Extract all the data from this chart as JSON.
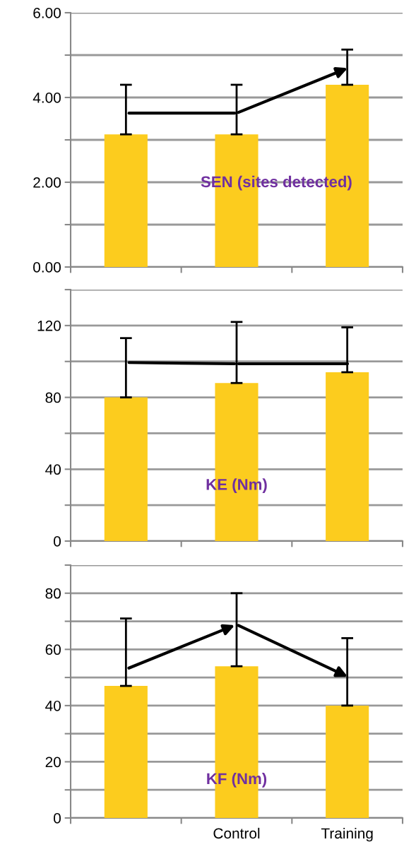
{
  "chart_data": [
    {
      "type": "bar",
      "categories": [
        null,
        null,
        null
      ],
      "values": [
        3.13,
        3.13,
        4.3
      ],
      "color": "#fccc1e",
      "errors": [
        [
          3.13,
          4.3
        ],
        [
          3.13,
          4.3
        ],
        [
          4.3,
          5.13
        ]
      ],
      "ylim": [
        0,
        6
      ],
      "yticks": [
        {
          "value": 0,
          "label": "0.00"
        },
        {
          "value": 1,
          "label": null
        },
        {
          "value": 2,
          "label": "2.00"
        },
        {
          "value": 3,
          "label": null
        },
        {
          "value": 4,
          "label": "4.00"
        },
        {
          "value": 5,
          "label": null
        },
        {
          "value": 6,
          "label": "6.00"
        }
      ],
      "grid": "y",
      "tick_labels": "y",
      "annotations": [
        "SEN (sites detected)"
      ]
    },
    {
      "type": "bar",
      "categories": [
        null,
        null,
        null
      ],
      "values": [
        80,
        88,
        94
      ],
      "color": "#fccc1e",
      "errors": [
        [
          80,
          113
        ],
        [
          88,
          122
        ],
        [
          94,
          119
        ]
      ],
      "ylim": [
        0,
        140
      ],
      "yticks": [
        0,
        {
          "value": 20,
          "label": null
        },
        40,
        {
          "value": 60,
          "label": null
        },
        80,
        {
          "value": 100,
          "label": null
        },
        120,
        {
          "value": 140,
          "label": null
        }
      ],
      "grid": "y",
      "tick_labels": "y",
      "annotations": [
        "KE (Nm)"
      ]
    },
    {
      "type": "bar",
      "categories": [
        null,
        "Control",
        "Training"
      ],
      "values": [
        47,
        54,
        40
      ],
      "color": "#fccc1e",
      "errors": [
        [
          47,
          71
        ],
        [
          54,
          80
        ],
        [
          40,
          64
        ]
      ],
      "ylim": [
        0,
        90
      ],
      "yticks": [
        0,
        {
          "value": 10,
          "label": null
        },
        20,
        {
          "value": 30,
          "label": null
        },
        40,
        {
          "value": 50,
          "label": null
        },
        60,
        {
          "value": 70,
          "label": null
        },
        80,
        {
          "value": 90,
          "label": null
        }
      ],
      "grid": "y",
      "annotations": [
        "KF (Nm)"
      ]
    }
  ]
}
